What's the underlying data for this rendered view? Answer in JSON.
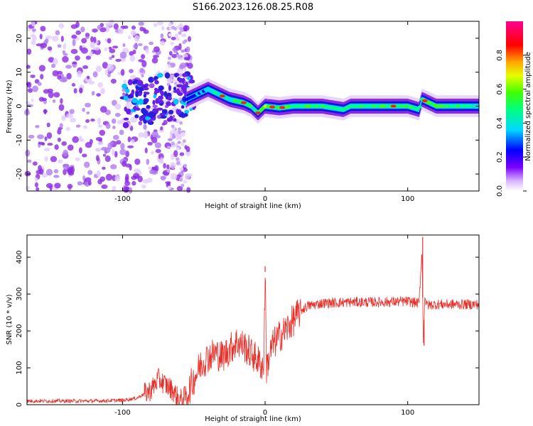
{
  "title": "S166.2023.126.08.25.R08",
  "chart_data": [
    {
      "type": "heatmap",
      "id": "spectrogram",
      "xlabel": "Height of straight line (km)",
      "ylabel": "Frequency (Hz)",
      "xlim": [
        -167,
        150
      ],
      "ylim": [
        -25,
        25
      ],
      "xticks": [
        -100,
        0,
        100
      ],
      "yticks": [
        -20,
        -10,
        0,
        10,
        20
      ],
      "colorbar": {
        "label": "Normalized spectral amplitude",
        "range": [
          0.0,
          1.0
        ],
        "ticks": [
          "0.0",
          "0.2",
          "0.4",
          "0.6",
          "0.8"
        ],
        "colormap": "rainbow (white-violet-blue-cyan-green-yellow-red-magenta)"
      },
      "ridge": {
        "description": "Bright ridge near 0 Hz from about -45 km to 150 km; noisy scatter below -60 km",
        "x": [
          -55,
          -45,
          -40,
          -35,
          -30,
          -25,
          -20,
          -15,
          -10,
          -5,
          0,
          10,
          20,
          40,
          55,
          60,
          80,
          100,
          108,
          110,
          120,
          150
        ],
        "freq": [
          2,
          4,
          5,
          4,
          3,
          2,
          1.5,
          1,
          0,
          -2,
          0,
          -0.5,
          0,
          0,
          -1,
          0,
          0,
          0,
          -1,
          2,
          0,
          0
        ],
        "amplitude": [
          0.25,
          0.35,
          0.4,
          0.45,
          0.5,
          0.5,
          0.55,
          0.6,
          0.55,
          0.5,
          0.7,
          0.6,
          0.55,
          0.55,
          0.5,
          0.55,
          0.55,
          0.6,
          0.5,
          0.55,
          0.6,
          0.5
        ]
      }
    },
    {
      "type": "line",
      "id": "snr",
      "xlabel": "Height of straight line (km)",
      "ylabel": "SNR (10 * v/v)",
      "xlim": [
        -167,
        150
      ],
      "ylim": [
        0,
        460
      ],
      "xticks": [
        -100,
        0,
        100
      ],
      "yticks": [
        0,
        100,
        200,
        300,
        400
      ],
      "color": "#e8302a",
      "series": [
        {
          "name": "SNR",
          "x": [
            -167,
            -140,
            -120,
            -100,
            -90,
            -80,
            -75,
            -70,
            -65,
            -60,
            -55,
            -50,
            -45,
            -40,
            -35,
            -30,
            -25,
            -20,
            -15,
            -10,
            -5,
            -1,
            0,
            1,
            5,
            10,
            15,
            20,
            25,
            30,
            40,
            60,
            80,
            100,
            108,
            110,
            111,
            112,
            113,
            115,
            120,
            150
          ],
          "y": [
            10,
            10,
            10,
            12,
            18,
            40,
            70,
            55,
            40,
            12,
            25,
            70,
            110,
            130,
            140,
            130,
            150,
            170,
            160,
            140,
            120,
            100,
            360,
            100,
            160,
            185,
            205,
            230,
            255,
            268,
            275,
            278,
            278,
            280,
            275,
            420,
            160,
            300,
            270,
            270,
            272,
            272
          ]
        }
      ],
      "spikes": [
        {
          "x": 0,
          "y": 375
        },
        {
          "x": 110.5,
          "y": 455
        },
        {
          "x": 111.5,
          "y": 160
        }
      ]
    }
  ]
}
